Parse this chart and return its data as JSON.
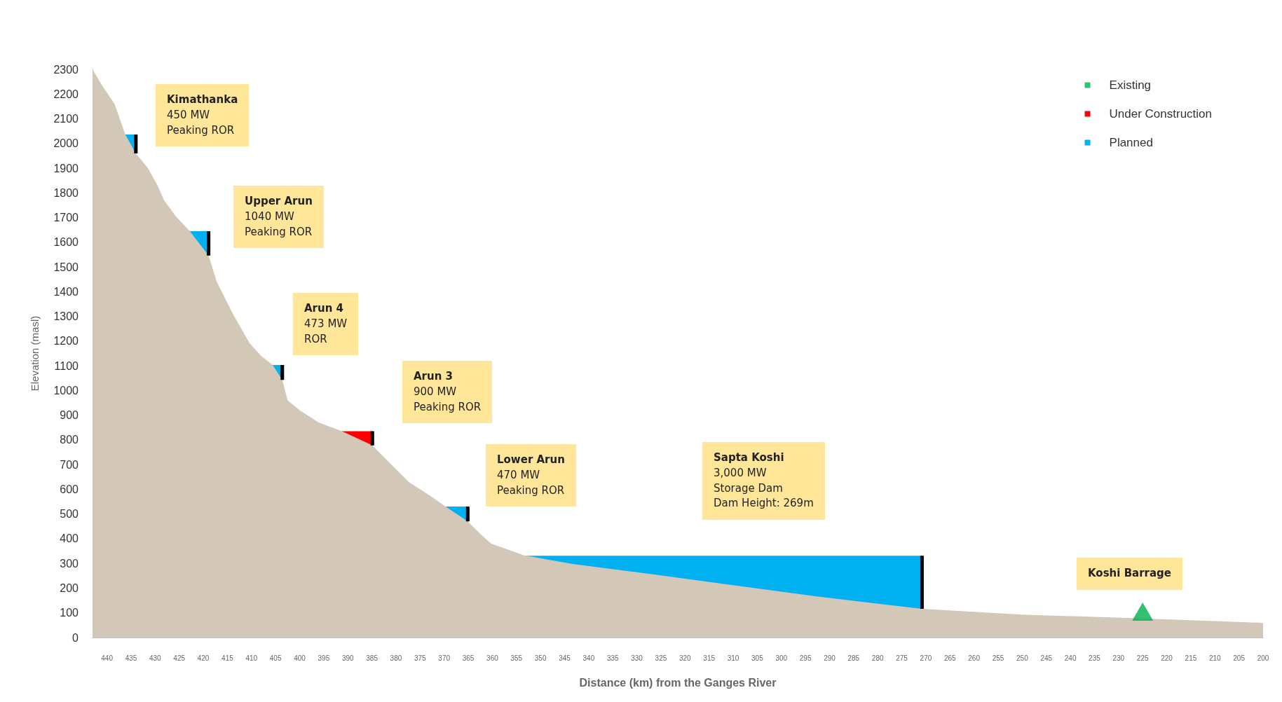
{
  "chart_data": {
    "type": "area",
    "xlabel": "Distance (km) from the Ganges River",
    "ylabel": "Elevation (masl)",
    "xlim": [
      443,
      200
    ],
    "xticks": [
      440,
      435,
      430,
      425,
      420,
      415,
      410,
      405,
      400,
      395,
      390,
      385,
      380,
      375,
      370,
      365,
      360,
      355,
      350,
      345,
      340,
      335,
      330,
      325,
      320,
      315,
      310,
      305,
      300,
      295,
      290,
      285,
      280,
      275,
      270,
      265,
      260,
      255,
      250,
      245,
      240,
      235,
      230,
      225,
      220,
      215,
      210,
      205,
      200
    ],
    "ylim": [
      0,
      2300
    ],
    "yticks": [
      0,
      100,
      200,
      300,
      400,
      500,
      600,
      700,
      800,
      900,
      1000,
      1100,
      1200,
      1300,
      1400,
      1500,
      1600,
      1700,
      1800,
      1900,
      2000,
      2100,
      2200,
      2300
    ],
    "legend": "top right",
    "series": [
      {
        "name": "Planned",
        "color": "#00b0f0",
        "x": [
          436.2,
          434,
          428,
          422.8,
          418.9,
          410,
          405.6,
          403.6,
          380,
          369.7,
          365.1,
          360,
          353.5,
          270.8
        ],
        "values": [
          2036,
          2036,
          null,
          1645,
          1645,
          null,
          1103,
          1103,
          null,
          530,
          530,
          null,
          331,
          331
        ]
      },
      {
        "name": "Under Construction",
        "color": "#ff0000",
        "x": [
          391.2,
          384.9
        ],
        "values": [
          835,
          835
        ]
      },
      {
        "color": "#d3c8b8",
        "x": [
          443,
          441,
          438.4,
          436.2,
          434,
          431.5,
          429.5,
          428.2,
          425.7,
          422.8,
          418.9,
          417.2,
          413.8,
          410.4,
          408,
          405.6,
          403.6,
          402.5,
          400,
          396,
          391.2,
          384.9,
          380.7,
          377.3,
          373,
          369.7,
          365.1,
          362.5,
          360.3,
          353.5,
          343.3,
          326.4,
          292.4,
          270.8,
          250,
          226,
          200.7,
          200
        ],
        "values": [
          2300,
          2235,
          2159,
          2036,
          1960,
          1900,
          1830,
          1772,
          1705,
          1645,
          1546,
          1440,
          1308,
          1192,
          1140,
          1103,
          1043,
          960,
          920,
          870,
          835,
          778,
          695,
          629,
          575,
          530,
          470,
          420,
          381,
          333,
          298,
          255,
          166,
          116,
          93,
          78,
          60,
          58
        ]
      },
      {
        "type": "line",
        "color": "#000000",
        "x": [
          434,
          434,
          430,
          418.9,
          418.9,
          410,
          403.6,
          403.6,
          395,
          384.9,
          384.9,
          375,
          365.1,
          365.1,
          300,
          270.8,
          270.8
        ],
        "values": [
          1960,
          2036,
          null,
          1546,
          1645,
          null,
          1043,
          1103,
          null,
          778,
          835,
          null,
          470,
          530,
          null,
          116,
          331
        ]
      },
      {
        "type": "scatter",
        "name": "Existing",
        "color": "#00b050",
        "marker": "triangle",
        "x": [
          225
        ],
        "values": [
          105
        ]
      }
    ],
    "annotations": [
      "Kimathanka\n450 MW\nPeaking ROR",
      "Upper Arun\n1040 MW\nPeaking ROR",
      "Arun 4\n473 MW\nROR",
      "Arun 3\n900 MW\nPeaking ROR",
      "Lower Arun\n470 MW\nPeaking ROR",
      "Sapta Koshi\n3,000 MW\nStorage Dam\nDam Height: 269m",
      "Koshi Barrage"
    ]
  }
}
